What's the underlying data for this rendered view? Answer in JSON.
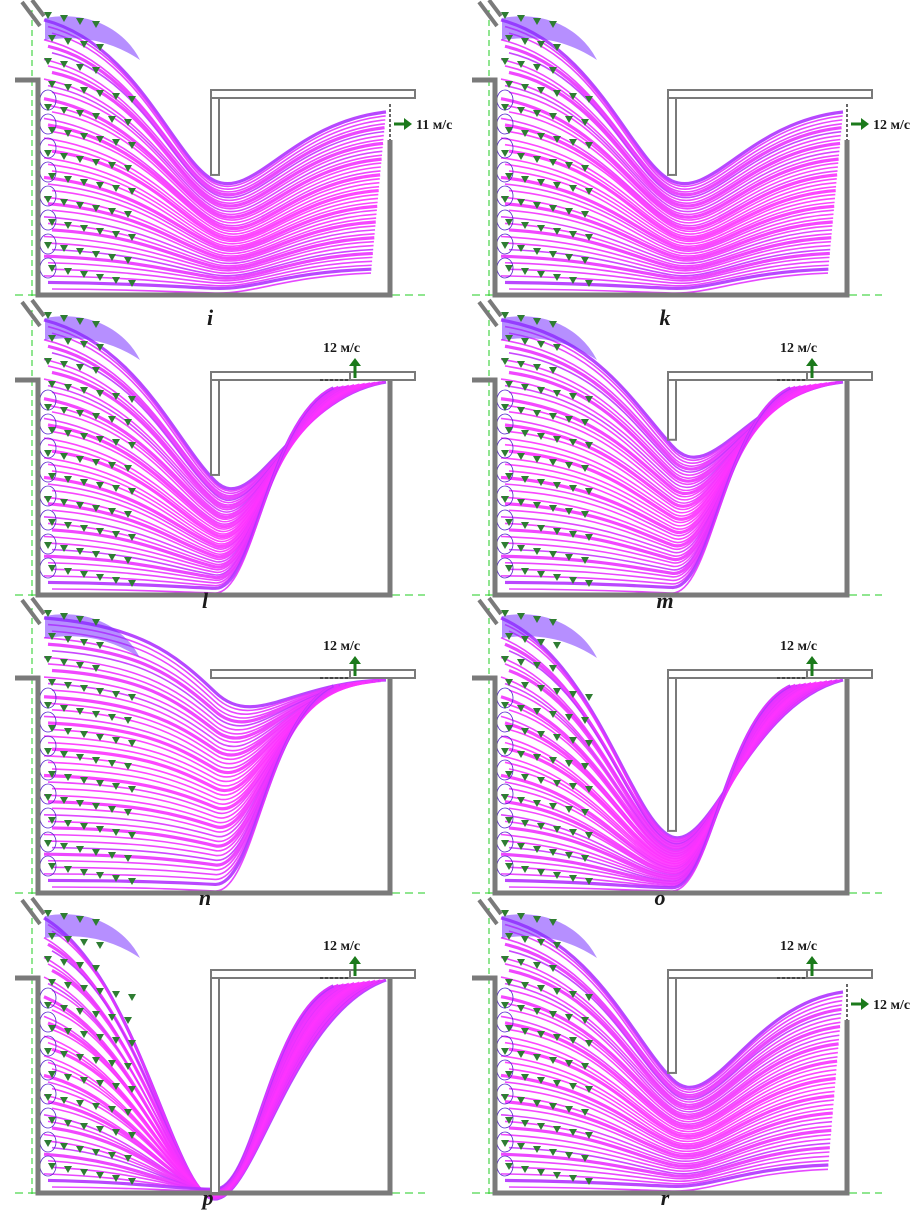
{
  "colors": {
    "flow_main": "#ff33ff",
    "flow_edge": "#7a33ff",
    "vortex": "#5522cc",
    "particle": "#2e7d32",
    "wall": "#7a7a7a",
    "axis": "#22cc22",
    "outlet_arrow": "#1b7a1b"
  },
  "panels": [
    {
      "id": "i",
      "label": "i",
      "baffle_bottom": 0.42,
      "top_outlet": false,
      "side_outlet": true,
      "top_speed": "",
      "side_speed": "11 м/с"
    },
    {
      "id": "k",
      "label": "k",
      "baffle_bottom": 0.42,
      "top_outlet": false,
      "side_outlet": true,
      "top_speed": "",
      "side_speed": "12 м/с"
    },
    {
      "id": "l",
      "label": "l",
      "baffle_bottom": 0.42,
      "top_outlet": true,
      "side_outlet": false,
      "top_speed": "12 м/с",
      "side_speed": ""
    },
    {
      "id": "m",
      "label": "m",
      "baffle_bottom": 0.25,
      "top_outlet": true,
      "side_outlet": false,
      "top_speed": "12 м/с",
      "side_speed": ""
    },
    {
      "id": "n",
      "label": "n",
      "baffle_bottom": 0.0,
      "top_outlet": true,
      "side_outlet": false,
      "top_speed": "12 м/с",
      "side_speed": ""
    },
    {
      "id": "o",
      "label": "o",
      "baffle_bottom": 0.7,
      "top_outlet": true,
      "side_outlet": false,
      "top_speed": "12 м/с",
      "side_speed": ""
    },
    {
      "id": "p",
      "label": "p",
      "baffle_bottom": 1.0,
      "top_outlet": true,
      "side_outlet": false,
      "top_speed": "12 м/с",
      "side_speed": ""
    },
    {
      "id": "r",
      "label": "r",
      "baffle_bottom": 0.42,
      "top_outlet": true,
      "side_outlet": true,
      "top_speed": "12 м/с",
      "side_speed": "12 м/с"
    }
  ]
}
